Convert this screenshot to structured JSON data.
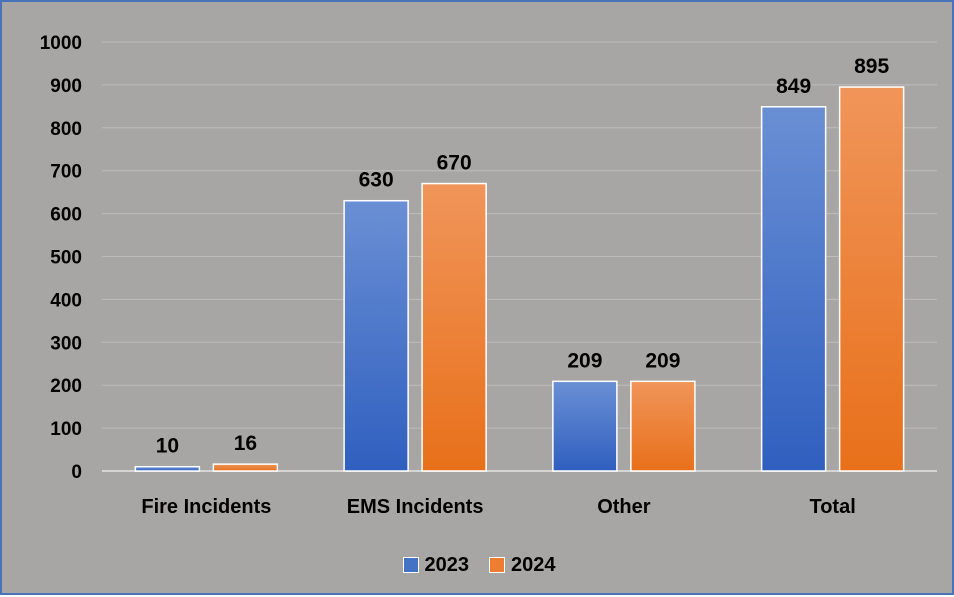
{
  "chart_data": {
    "type": "bar",
    "title": "",
    "xlabel": "",
    "ylabel": "",
    "categories": [
      "Fire Incidents",
      "EMS Incidents",
      "Other",
      "Total"
    ],
    "series": [
      {
        "name": "2023",
        "values": [
          10,
          630,
          209,
          849
        ],
        "color": "#4472c4"
      },
      {
        "name": "2024",
        "values": [
          16,
          670,
          209,
          895
        ],
        "color": "#ed7d31"
      }
    ],
    "ylim": [
      0,
      1000
    ],
    "yticks": [
      0,
      100,
      200,
      300,
      400,
      500,
      600,
      700,
      800,
      900,
      1000
    ],
    "grid": true,
    "legend_position": "bottom",
    "data_labels": true,
    "background": "#a8a6a4"
  }
}
